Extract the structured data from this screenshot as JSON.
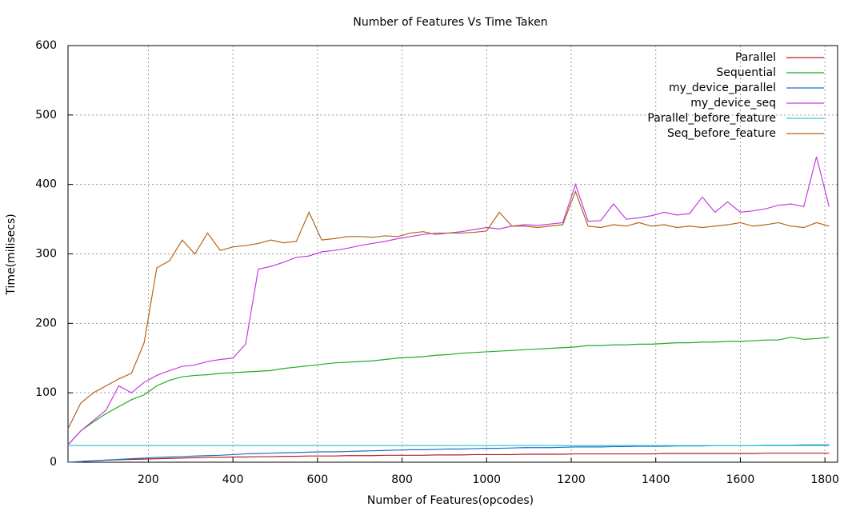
{
  "chart_data": {
    "type": "line",
    "title": "Number of Features Vs Time Taken",
    "x_label": "Number of Features(opcodes)",
    "y_label": "Time(milisecs)",
    "xlim": [
      10,
      1830
    ],
    "ylim": [
      0,
      600
    ],
    "xticks": [
      200,
      400,
      600,
      800,
      1000,
      1200,
      1400,
      1600,
      1800
    ],
    "yticks": [
      0,
      100,
      200,
      300,
      400,
      500,
      600
    ],
    "grid": true,
    "legend": "top-right",
    "x": [
      10,
      40,
      70,
      100,
      130,
      160,
      190,
      220,
      250,
      280,
      310,
      340,
      370,
      400,
      430,
      460,
      490,
      520,
      550,
      580,
      610,
      640,
      670,
      700,
      730,
      760,
      790,
      820,
      850,
      880,
      910,
      940,
      970,
      1000,
      1030,
      1060,
      1090,
      1120,
      1150,
      1180,
      1210,
      1240,
      1270,
      1300,
      1330,
      1360,
      1390,
      1420,
      1450,
      1480,
      1510,
      1540,
      1570,
      1600,
      1630,
      1660,
      1690,
      1720,
      1750,
      1780,
      1810
    ],
    "series": [
      {
        "name": "Parallel",
        "color": "#b22222",
        "values": [
          0,
          1,
          2,
          3,
          3.5,
          4,
          4.5,
          5,
          5.5,
          6,
          6.5,
          7,
          7,
          7.5,
          7.5,
          8,
          8,
          8.5,
          8.5,
          9,
          9,
          9,
          9.5,
          9.5,
          9.5,
          10,
          10,
          10,
          10,
          10.5,
          10.5,
          10.5,
          11,
          11,
          11,
          11,
          11.5,
          11.5,
          11.5,
          11.5,
          12,
          12,
          12,
          12,
          12,
          12,
          12,
          12.5,
          12.5,
          12.5,
          12.5,
          12.5,
          12.5,
          12.5,
          12.5,
          13,
          13,
          13,
          13,
          13,
          13
        ]
      },
      {
        "name": "Sequential",
        "color": "#22aa22",
        "values": [
          25,
          45,
          58,
          70,
          80,
          90,
          97,
          110,
          118,
          123,
          125,
          126,
          128,
          129,
          130,
          131,
          132,
          135,
          137,
          139,
          141,
          143,
          144,
          145,
          146,
          148,
          150,
          151,
          152,
          154,
          155,
          157,
          158,
          159,
          160,
          161,
          162,
          163,
          164,
          165,
          166,
          168,
          168,
          169,
          169,
          170,
          170,
          171,
          172,
          172,
          173,
          173,
          174,
          174,
          175,
          176,
          176,
          180,
          177,
          178,
          180
        ]
      },
      {
        "name": "my_device_parallel",
        "color": "#1f6fbf",
        "values": [
          0,
          1,
          2,
          3,
          4,
          5,
          6,
          7,
          7.5,
          8,
          9,
          9.5,
          10,
          11,
          12,
          12.5,
          13,
          13.5,
          14,
          14.5,
          15,
          15,
          15.5,
          16,
          16.5,
          17,
          17.5,
          18,
          18,
          18.5,
          19,
          19,
          19.5,
          20,
          20,
          20.5,
          21,
          21,
          21,
          21.5,
          22,
          22,
          22,
          22.5,
          22.5,
          23,
          23,
          23,
          23.5,
          23.5,
          23.5,
          24,
          24,
          24,
          24,
          24.5,
          24.5,
          24.5,
          25,
          25,
          25
        ]
      },
      {
        "name": "my_device_seq",
        "color": "#c040e0",
        "values": [
          25,
          45,
          60,
          75,
          110,
          100,
          115,
          125,
          132,
          138,
          140,
          145,
          148,
          150,
          170,
          278,
          282,
          288,
          295,
          297,
          303,
          305,
          308,
          312,
          315,
          318,
          322,
          325,
          328,
          330,
          330,
          332,
          335,
          338,
          336,
          340,
          342,
          341,
          343,
          345,
          400,
          347,
          348,
          372,
          350,
          352,
          355,
          360,
          356,
          358,
          382,
          360,
          375,
          360,
          362,
          365,
          370,
          372,
          368,
          440,
          368
        ]
      },
      {
        "name": "Parallel_before_feature",
        "color": "#30c8d8",
        "values": [
          24,
          24,
          24,
          24,
          24,
          24,
          24,
          24,
          24,
          24,
          24,
          24,
          24,
          24,
          24,
          24,
          24,
          24,
          24,
          24,
          24,
          24,
          24,
          24,
          24,
          24,
          24,
          24,
          24,
          24,
          24,
          24,
          24,
          24,
          24,
          24,
          24,
          24,
          24,
          24,
          24,
          24,
          24,
          24,
          24,
          24,
          24,
          24,
          24,
          24,
          24,
          24,
          24,
          24,
          24,
          24,
          24,
          24,
          24,
          24,
          24
        ]
      },
      {
        "name": "Seq_before_feature",
        "color": "#b5651d",
        "values": [
          48,
          85,
          100,
          110,
          120,
          128,
          172,
          280,
          290,
          320,
          300,
          330,
          305,
          310,
          312,
          315,
          320,
          316,
          318,
          360,
          320,
          322,
          325,
          325,
          324,
          326,
          325,
          330,
          332,
          328,
          330,
          330,
          331,
          333,
          360,
          340,
          340,
          338,
          340,
          342,
          390,
          340,
          338,
          342,
          340,
          345,
          340,
          342,
          338,
          340,
          338,
          340,
          342,
          345,
          340,
          342,
          345,
          340,
          338,
          345,
          340
        ]
      }
    ]
  }
}
